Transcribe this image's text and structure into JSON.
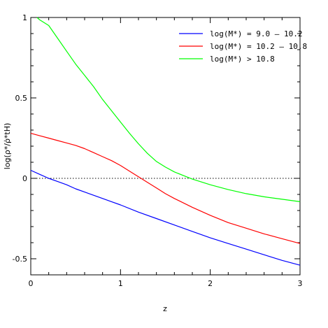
{
  "chart_data": {
    "type": "line",
    "title": "",
    "xlabel": "z",
    "ylabel": "log(ρ*/ρ̇*tH)",
    "xlim": [
      0,
      3
    ],
    "ylim": [
      -0.6,
      1
    ],
    "x_ticks": [
      0,
      1,
      2,
      3
    ],
    "x_tick_labels": [
      "0",
      "1",
      "2",
      "3"
    ],
    "y_ticks": [
      -0.5,
      0,
      0.5,
      1
    ],
    "y_tick_labels": [
      "-0.5",
      "0",
      "0.5",
      "1"
    ],
    "reference_line": {
      "y": 0,
      "style": "dotted",
      "color": "#000000"
    },
    "legend_position": "top-right",
    "series": [
      {
        "name": "log(M*) = 9.0 – 10.2",
        "color": "#0000ff",
        "x": [
          0,
          0.1,
          0.2,
          0.3,
          0.4,
          0.5,
          0.6,
          0.7,
          0.8,
          0.9,
          1.0,
          1.2,
          1.4,
          1.6,
          1.8,
          2.0,
          2.2,
          2.4,
          2.6,
          2.8,
          3.0
        ],
        "y": [
          0.05,
          0.025,
          0.0,
          -0.02,
          -0.04,
          -0.065,
          -0.085,
          -0.105,
          -0.125,
          -0.145,
          -0.165,
          -0.21,
          -0.25,
          -0.29,
          -0.33,
          -0.37,
          -0.405,
          -0.44,
          -0.475,
          -0.51,
          -0.54
        ]
      },
      {
        "name": "log(M*) = 10.2 – 10.8",
        "color": "#ff0000",
        "x": [
          0,
          0.1,
          0.2,
          0.3,
          0.4,
          0.5,
          0.6,
          0.7,
          0.8,
          0.9,
          1.0,
          1.1,
          1.2,
          1.3,
          1.4,
          1.5,
          1.6,
          1.8,
          2.0,
          2.2,
          2.4,
          2.6,
          2.8,
          3.0
        ],
        "y": [
          0.28,
          0.265,
          0.25,
          0.235,
          0.22,
          0.205,
          0.185,
          0.16,
          0.135,
          0.11,
          0.08,
          0.045,
          0.01,
          -0.025,
          -0.06,
          -0.095,
          -0.125,
          -0.18,
          -0.23,
          -0.275,
          -0.31,
          -0.345,
          -0.375,
          -0.405
        ]
      },
      {
        "name": "log(M*) > 10.8",
        "color": "#00ff00",
        "x": [
          0.07,
          0.1,
          0.2,
          0.3,
          0.4,
          0.5,
          0.6,
          0.7,
          0.8,
          0.9,
          1.0,
          1.1,
          1.2,
          1.3,
          1.4,
          1.5,
          1.6,
          1.8,
          2.0,
          2.2,
          2.4,
          2.6,
          2.8,
          3.0
        ],
        "y": [
          1.0,
          0.985,
          0.95,
          0.87,
          0.79,
          0.71,
          0.64,
          0.57,
          0.49,
          0.42,
          0.35,
          0.28,
          0.215,
          0.155,
          0.105,
          0.07,
          0.04,
          -0.005,
          -0.04,
          -0.07,
          -0.095,
          -0.115,
          -0.13,
          -0.145
        ]
      }
    ]
  }
}
